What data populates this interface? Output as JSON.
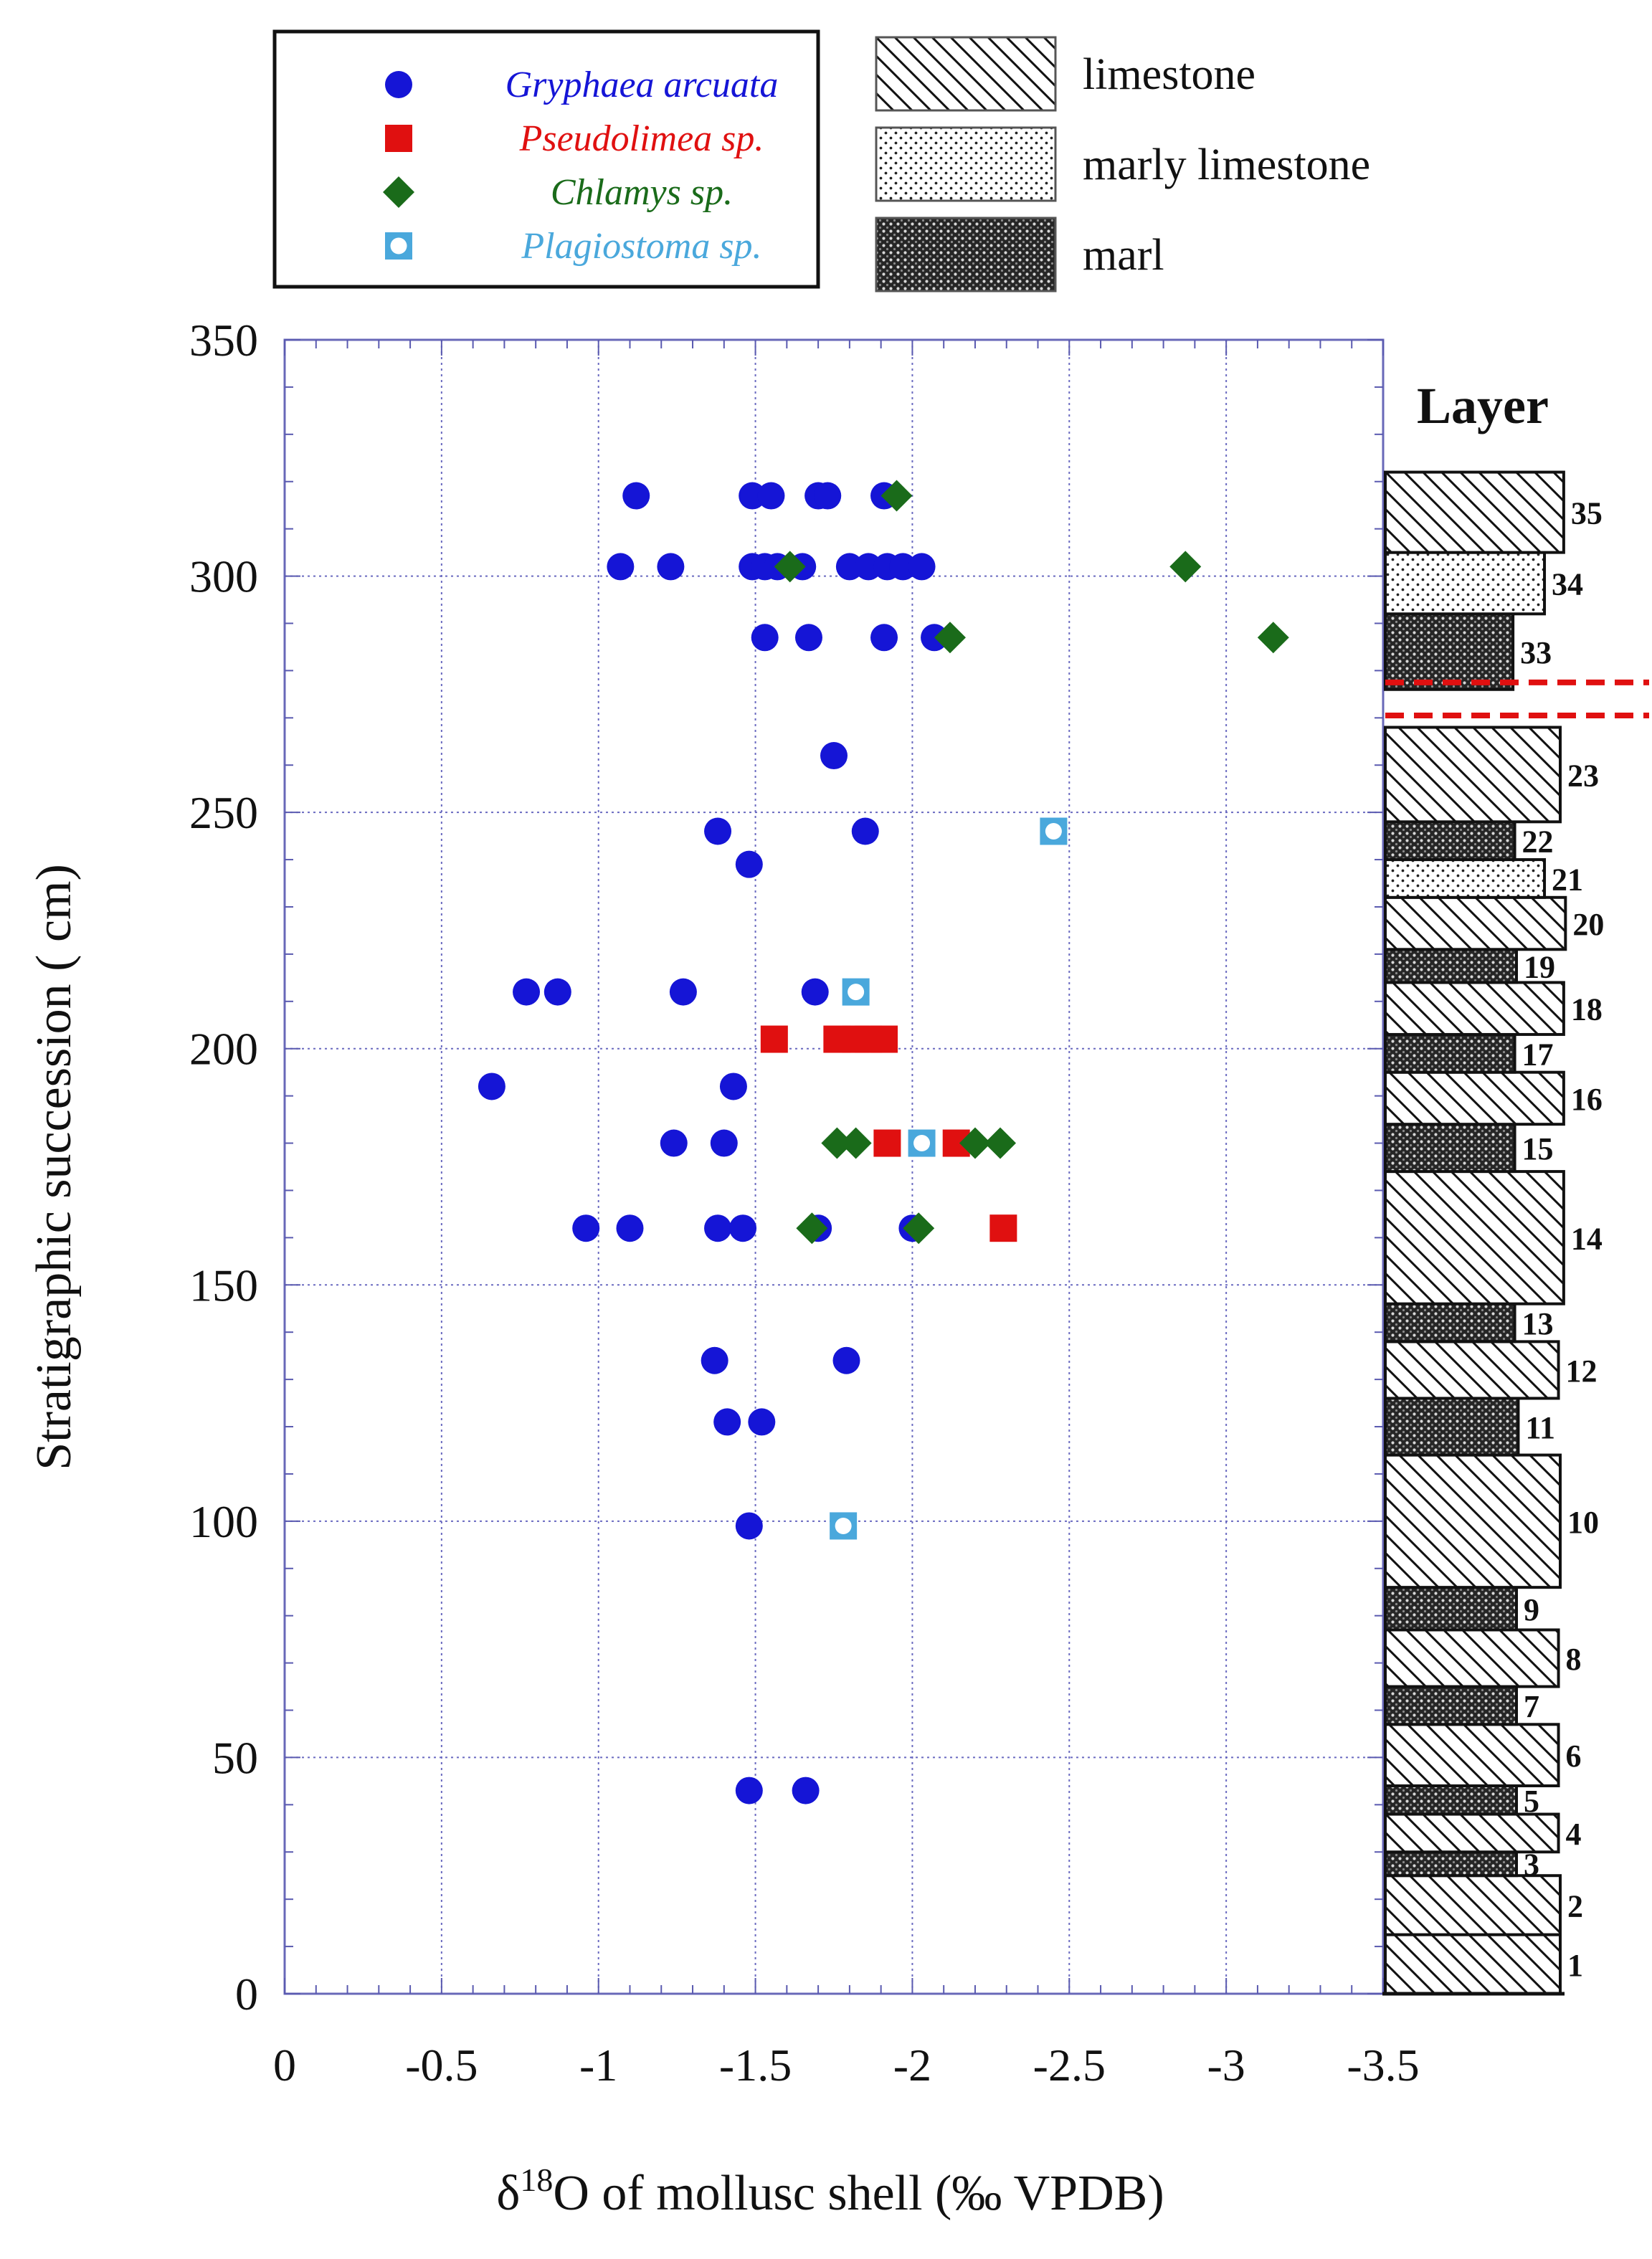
{
  "chart_data": {
    "type": "scatter",
    "xlabel": "δ18O of mollusc shell (‰ VPDB)",
    "ylabel": "Stratigraphic succession ( cm)",
    "xlim": [
      0,
      -3.5
    ],
    "ylim": [
      0,
      350
    ],
    "x_ticks": [
      "0",
      "-0.5",
      "-1",
      "-1.5",
      "-2",
      "-2.5",
      "-3",
      "-3.5"
    ],
    "y_ticks": [
      "0",
      "50",
      "100",
      "150",
      "200",
      "250",
      "300",
      "350"
    ],
    "grid": "dotted",
    "legend_position": "top-left",
    "series": [
      {
        "name": "Gryphaea arcuata",
        "color": "#1515d6",
        "marker": "circle",
        "points": [
          [
            -1.12,
            317
          ],
          [
            -1.49,
            317
          ],
          [
            -1.55,
            317
          ],
          [
            -1.7,
            317
          ],
          [
            -1.73,
            317
          ],
          [
            -1.91,
            317
          ],
          [
            -1.07,
            302
          ],
          [
            -1.23,
            302
          ],
          [
            -1.49,
            302
          ],
          [
            -1.53,
            302
          ],
          [
            -1.57,
            302
          ],
          [
            -1.65,
            302
          ],
          [
            -1.8,
            302
          ],
          [
            -1.86,
            302
          ],
          [
            -1.92,
            302
          ],
          [
            -1.97,
            302
          ],
          [
            -2.03,
            302
          ],
          [
            -1.53,
            287
          ],
          [
            -1.67,
            287
          ],
          [
            -1.91,
            287
          ],
          [
            -2.07,
            287
          ],
          [
            -1.75,
            262
          ],
          [
            -1.38,
            246
          ],
          [
            -1.85,
            246
          ],
          [
            -1.48,
            239
          ],
          [
            -0.77,
            212
          ],
          [
            -0.87,
            212
          ],
          [
            -1.27,
            212
          ],
          [
            -1.69,
            212
          ],
          [
            -0.66,
            192
          ],
          [
            -1.43,
            192
          ],
          [
            -1.24,
            180
          ],
          [
            -1.4,
            180
          ],
          [
            -0.96,
            162
          ],
          [
            -1.1,
            162
          ],
          [
            -1.38,
            162
          ],
          [
            -1.46,
            162
          ],
          [
            -1.7,
            162
          ],
          [
            -2.0,
            162
          ],
          [
            -1.37,
            134
          ],
          [
            -1.79,
            134
          ],
          [
            -1.41,
            121
          ],
          [
            -1.52,
            121
          ],
          [
            -1.48,
            99
          ],
          [
            -1.48,
            43
          ],
          [
            -1.66,
            43
          ]
        ]
      },
      {
        "name": "Pseudolimea sp.",
        "color": "#e01010",
        "marker": "square",
        "points": [
          [
            -1.56,
            202
          ],
          [
            -1.76,
            202
          ],
          [
            -1.82,
            202
          ],
          [
            -1.86,
            202
          ],
          [
            -1.91,
            202
          ],
          [
            -1.92,
            180
          ],
          [
            -2.14,
            180
          ],
          [
            -2.29,
            162
          ]
        ]
      },
      {
        "name": "Chlamys sp.",
        "color": "#1a6b1a",
        "marker": "diamond",
        "points": [
          [
            -1.95,
            317
          ],
          [
            -1.61,
            302
          ],
          [
            -2.87,
            302
          ],
          [
            -2.12,
            287
          ],
          [
            -3.15,
            287
          ],
          [
            -1.76,
            180
          ],
          [
            -1.82,
            180
          ],
          [
            -2.2,
            180
          ],
          [
            -2.28,
            180
          ],
          [
            -1.68,
            162
          ],
          [
            -2.02,
            162
          ]
        ]
      },
      {
        "name": "Plagiostoma sp.",
        "color": "#4aa8dc",
        "marker": "open-square-circle",
        "points": [
          [
            -2.45,
            246
          ],
          [
            -1.82,
            212
          ],
          [
            -2.03,
            180
          ],
          [
            -1.78,
            99
          ]
        ]
      }
    ],
    "lithology_legend": [
      {
        "label": "limestone",
        "pattern": "hatch"
      },
      {
        "label": "marly limestone",
        "pattern": "dots"
      },
      {
        "label": "marl",
        "pattern": "dense"
      }
    ],
    "layers_title": "Layer",
    "layers": [
      {
        "num": "1",
        "bottom": 0,
        "top": 12.5,
        "litho": "limestone",
        "width": 1.0
      },
      {
        "num": "2",
        "bottom": 12.5,
        "top": 25,
        "litho": "limestone",
        "width": 1.0
      },
      {
        "num": "3",
        "bottom": 25,
        "top": 30,
        "litho": "marl",
        "width": 0.75
      },
      {
        "num": "4",
        "bottom": 30,
        "top": 38,
        "litho": "limestone",
        "width": 0.99
      },
      {
        "num": "5",
        "bottom": 38,
        "top": 44,
        "litho": "marl",
        "width": 0.75
      },
      {
        "num": "6",
        "bottom": 44,
        "top": 57,
        "litho": "limestone",
        "width": 0.99
      },
      {
        "num": "7",
        "bottom": 57,
        "top": 65,
        "litho": "marl",
        "width": 0.75
      },
      {
        "num": "8",
        "bottom": 65,
        "top": 77,
        "litho": "limestone",
        "width": 0.99
      },
      {
        "num": "9",
        "bottom": 77,
        "top": 86,
        "litho": "marl",
        "width": 0.75
      },
      {
        "num": "10",
        "bottom": 86,
        "top": 114,
        "litho": "limestone",
        "width": 1.0
      },
      {
        "num": "11",
        "bottom": 114,
        "top": 126,
        "litho": "marl",
        "width": 0.76
      },
      {
        "num": "12",
        "bottom": 126,
        "top": 138,
        "litho": "limestone",
        "width": 0.99
      },
      {
        "num": "13",
        "bottom": 138,
        "top": 146,
        "litho": "marl",
        "width": 0.74
      },
      {
        "num": "14",
        "bottom": 146,
        "top": 174,
        "litho": "limestone",
        "width": 1.02
      },
      {
        "num": "15",
        "bottom": 174,
        "top": 184,
        "litho": "marl",
        "width": 0.74
      },
      {
        "num": "16",
        "bottom": 184,
        "top": 195,
        "litho": "limestone",
        "width": 1.02
      },
      {
        "num": "17",
        "bottom": 195,
        "top": 203,
        "litho": "marl",
        "width": 0.74
      },
      {
        "num": "18",
        "bottom": 203,
        "top": 214,
        "litho": "limestone",
        "width": 1.02
      },
      {
        "num": "19",
        "bottom": 214,
        "top": 221,
        "litho": "marl",
        "width": 0.75
      },
      {
        "num": "20",
        "bottom": 221,
        "top": 232,
        "litho": "limestone",
        "width": 1.03
      },
      {
        "num": "21",
        "bottom": 232,
        "top": 240,
        "litho": "marly limestone",
        "width": 0.91
      },
      {
        "num": "22",
        "bottom": 240,
        "top": 248,
        "litho": "marl",
        "width": 0.74
      },
      {
        "num": "23",
        "bottom": 248,
        "top": 268,
        "litho": "limestone",
        "width": 1.0
      },
      {
        "num": "33",
        "bottom": 276,
        "top": 292,
        "litho": "marl",
        "width": 0.73
      },
      {
        "num": "34",
        "bottom": 292,
        "top": 305,
        "litho": "marly limestone",
        "width": 0.91
      },
      {
        "num": "35",
        "bottom": 305,
        "top": 322,
        "litho": "limestone",
        "width": 1.02
      }
    ],
    "gap_lines_y": [
      270.5,
      277.5
    ],
    "gap_color": "#e01010"
  }
}
